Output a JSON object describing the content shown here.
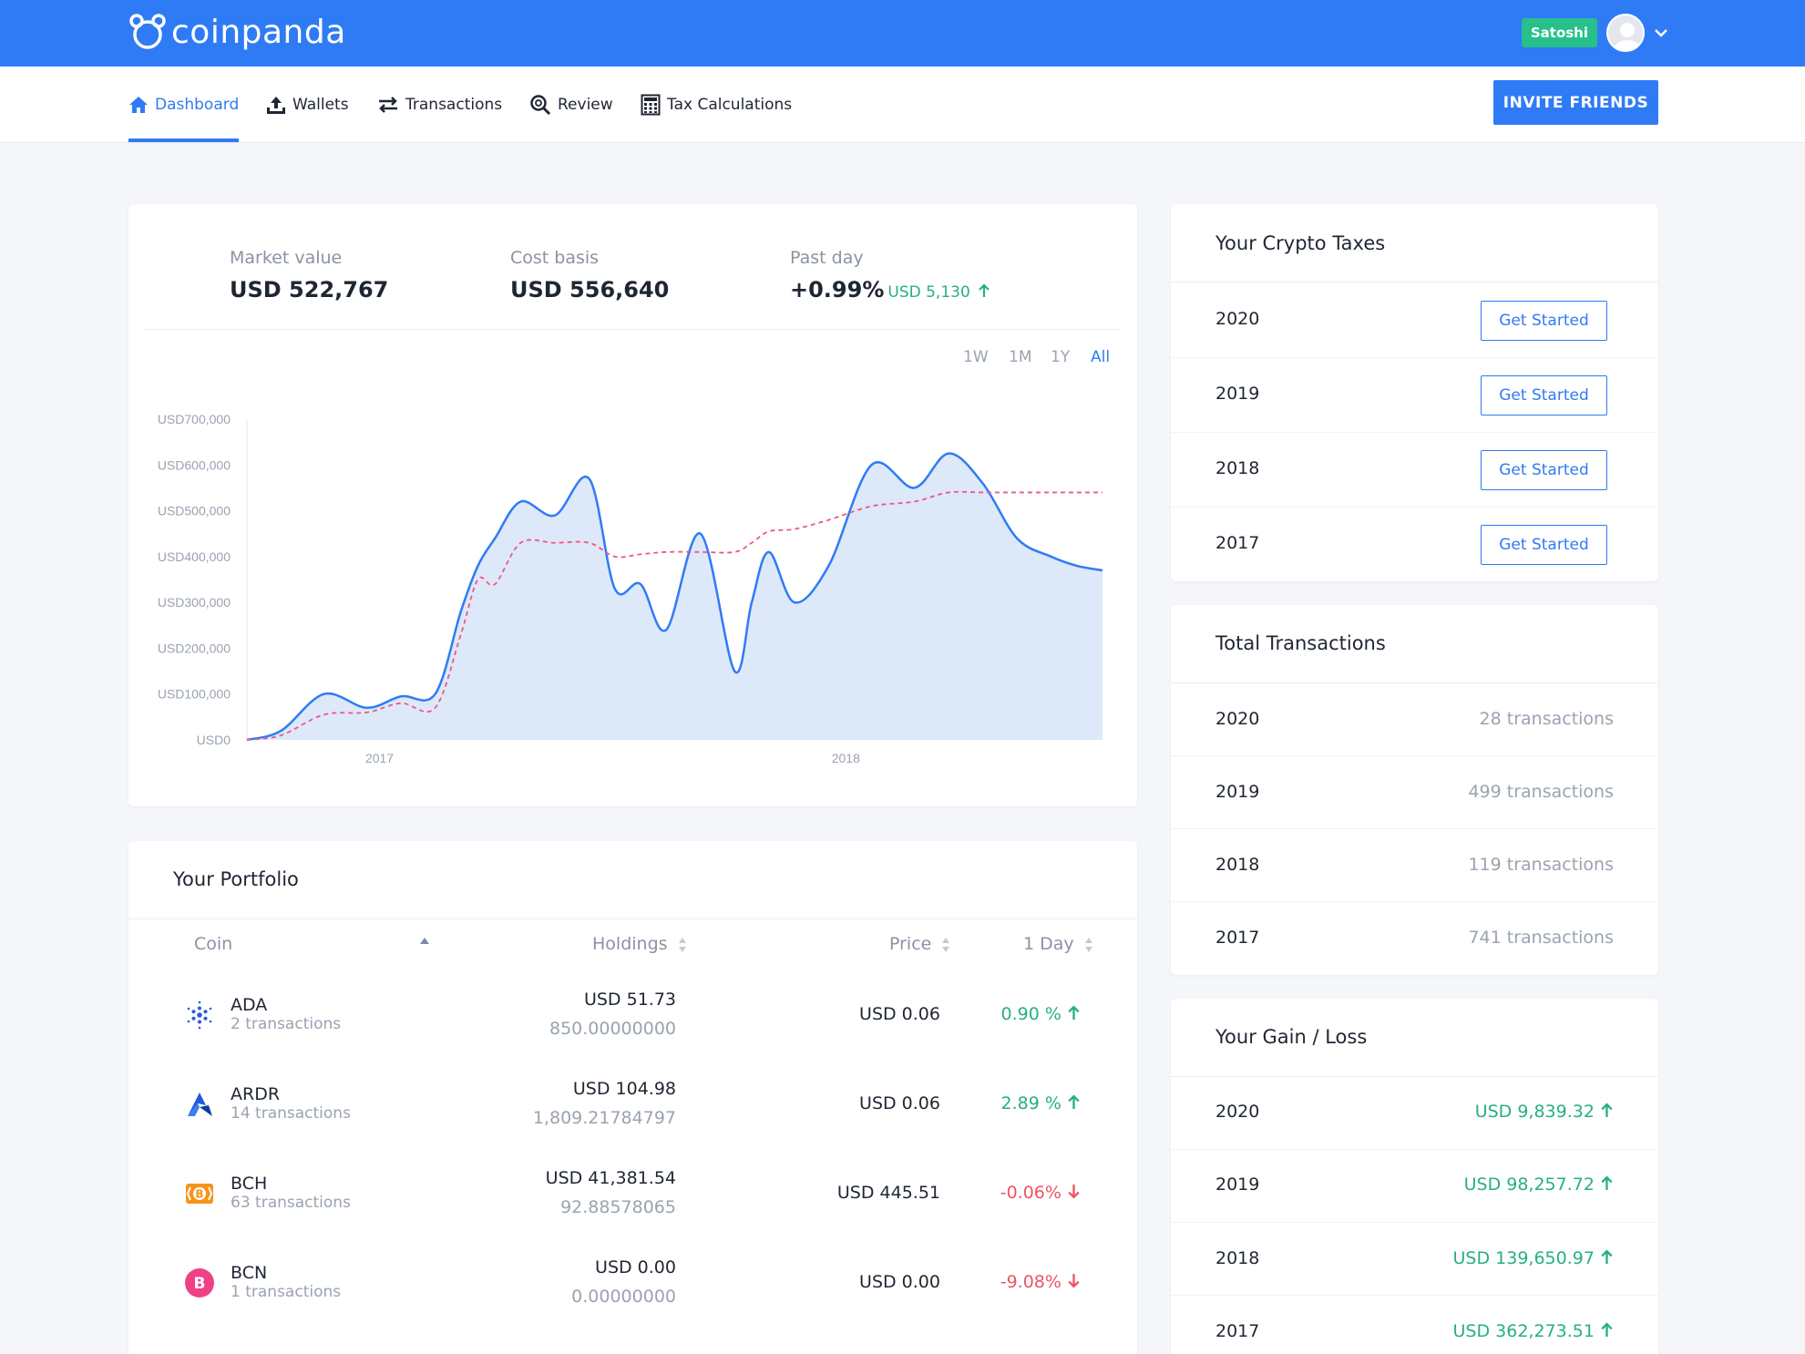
{
  "brand": {
    "name": "coinpanda",
    "color": "#2f7bf5"
  },
  "user": {
    "name": "Satoshi"
  },
  "nav": {
    "items": [
      {
        "label": "Dashboard",
        "icon": "home-icon",
        "active": true
      },
      {
        "label": "Wallets",
        "icon": "upload-icon"
      },
      {
        "label": "Transactions",
        "icon": "transfer-arrows-icon"
      },
      {
        "label": "Review",
        "icon": "magnifier-icon"
      },
      {
        "label": "Tax Calculations",
        "icon": "calculator-icon"
      }
    ],
    "invite_label": "INVITE FRIENDS"
  },
  "summary": {
    "market_value_label": "Market value",
    "market_value": "USD 522,767",
    "cost_basis_label": "Cost basis",
    "cost_basis": "USD 556,640",
    "past_day_label": "Past day",
    "past_day_pct": "+0.99%",
    "past_day_usd": "USD 5,130",
    "ranges": [
      "1W",
      "1M",
      "1Y",
      "All"
    ],
    "active_range": "All"
  },
  "chart_data": {
    "type": "area",
    "title": "",
    "xlabel": "",
    "ylabel": "",
    "y_ticks": [
      "USD700,000",
      "USD600,000",
      "USD500,000",
      "USD400,000",
      "USD300,000",
      "USD200,000",
      "USD100,000",
      "USD0"
    ],
    "x_ticks": [
      "2017",
      "2018"
    ],
    "ylim": [
      0,
      700000
    ],
    "grid": false,
    "x": [
      0,
      0.04,
      0.09,
      0.14,
      0.18,
      0.22,
      0.25,
      0.27,
      0.29,
      0.32,
      0.36,
      0.4,
      0.43,
      0.46,
      0.49,
      0.53,
      0.57,
      0.59,
      0.61,
      0.64,
      0.68,
      0.73,
      0.78,
      0.82,
      0.86,
      0.9,
      0.94,
      0.97,
      1.0
    ],
    "series": [
      {
        "type": "area",
        "color": "#2f7bf5",
        "fill": "#dde8f9",
        "values": [
          0,
          20000,
          100000,
          70000,
          95000,
          100000,
          280000,
          380000,
          440000,
          520000,
          490000,
          570000,
          330000,
          340000,
          240000,
          450000,
          150000,
          300000,
          410000,
          300000,
          380000,
          600000,
          550000,
          625000,
          560000,
          440000,
          400000,
          380000,
          370000
        ]
      },
      {
        "type": "line",
        "style": "dashed",
        "color": "#ee5a7f",
        "values": [
          0,
          10000,
          55000,
          60000,
          80000,
          70000,
          230000,
          350000,
          340000,
          430000,
          430000,
          430000,
          400000,
          405000,
          410000,
          410000,
          410000,
          430000,
          455000,
          460000,
          480000,
          510000,
          520000,
          540000,
          540000,
          540000,
          540000,
          540000,
          540000
        ]
      }
    ]
  },
  "taxes": {
    "title": "Your Crypto Taxes",
    "rows": [
      {
        "year": "2020",
        "action": "Get Started"
      },
      {
        "year": "2019",
        "action": "Get Started"
      },
      {
        "year": "2018",
        "action": "Get Started"
      },
      {
        "year": "2017",
        "action": "Get Started"
      }
    ]
  },
  "total_transactions": {
    "title": "Total Transactions",
    "rows": [
      {
        "year": "2020",
        "count": "28 transactions"
      },
      {
        "year": "2019",
        "count": "499 transactions"
      },
      {
        "year": "2018",
        "count": "119 transactions"
      },
      {
        "year": "2017",
        "count": "741 transactions"
      }
    ]
  },
  "gain_loss": {
    "title": "Your Gain / Loss",
    "rows": [
      {
        "year": "2020",
        "value": "USD 9,839.32"
      },
      {
        "year": "2019",
        "value": "USD 98,257.72"
      },
      {
        "year": "2018",
        "value": "USD 139,650.97"
      },
      {
        "year": "2017",
        "value": "USD 362,273.51"
      }
    ]
  },
  "portfolio": {
    "title": "Your Portfolio",
    "columns": {
      "coin": "Coin",
      "holdings": "Holdings",
      "price": "Price",
      "day": "1 Day"
    },
    "rows": [
      {
        "symbol": "ADA",
        "tx": "2 transactions",
        "usd": "USD 51.73",
        "amount": "850.00000000",
        "price": "USD 0.06",
        "day": "0.90 %",
        "dir": "up",
        "icon": "ada-coin-icon"
      },
      {
        "symbol": "ARDR",
        "tx": "14 transactions",
        "usd": "USD 104.98",
        "amount": "1,809.21784797",
        "price": "USD 0.06",
        "day": "2.89 %",
        "dir": "up",
        "icon": "ardr-coin-icon"
      },
      {
        "symbol": "BCH",
        "tx": "63 transactions",
        "usd": "USD 41,381.54",
        "amount": "92.88578065",
        "price": "USD 445.51",
        "day": "-0.06%",
        "dir": "down",
        "icon": "bch-coin-icon"
      },
      {
        "symbol": "BCN",
        "tx": "1 transactions",
        "usd": "USD 0.00",
        "amount": "0.00000000",
        "price": "USD 0.00",
        "day": "-9.08%",
        "dir": "down",
        "icon": "bcn-coin-icon"
      }
    ]
  },
  "colors": {
    "accent": "#2f7bf5",
    "positive": "#27b07e",
    "negative": "#ee5464",
    "badge": "#27c08b"
  }
}
